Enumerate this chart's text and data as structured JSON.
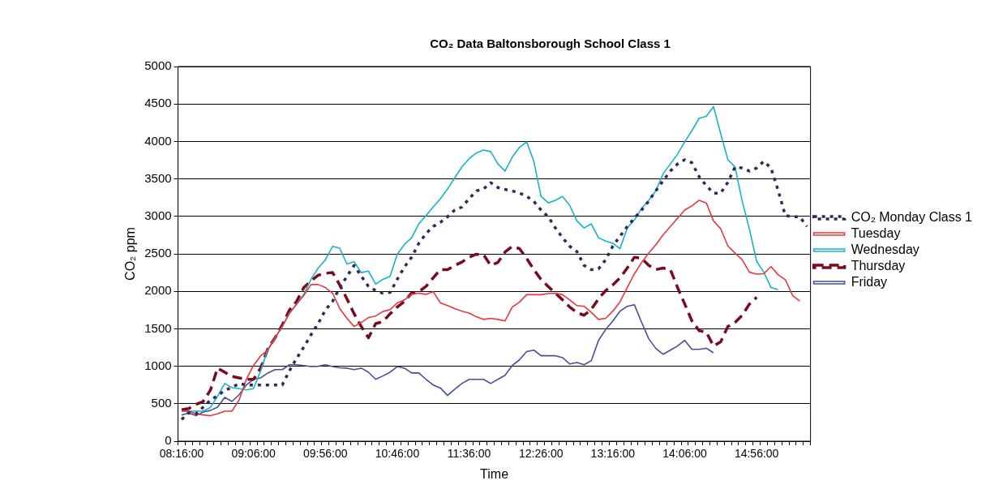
{
  "chart_data": {
    "type": "line",
    "title": "CO₂ Data Baltonsborough School Class 1",
    "xlabel": "Time",
    "ylabel": "CO₂ ppm",
    "categories": [
      "08:16:00",
      null,
      null,
      null,
      null,
      null,
      null,
      null,
      null,
      null,
      "09:06:00",
      null,
      null,
      null,
      null,
      null,
      null,
      null,
      null,
      null,
      "09:56:00",
      null,
      null,
      null,
      null,
      null,
      null,
      null,
      null,
      null,
      "10:46:00",
      null,
      null,
      null,
      null,
      null,
      null,
      null,
      null,
      null,
      "11:36:00",
      null,
      null,
      null,
      null,
      null,
      null,
      null,
      null,
      null,
      "12:26:00",
      null,
      null,
      null,
      null,
      null,
      null,
      null,
      null,
      null,
      "13:16:00",
      null,
      null,
      null,
      null,
      null,
      null,
      null,
      null,
      null,
      "14:06:00",
      null,
      null,
      null,
      null,
      null,
      null,
      null,
      null,
      null,
      "14:56:00",
      null,
      null,
      null,
      null,
      null,
      null,
      null
    ],
    "ylim": [
      0,
      5000
    ],
    "yticks": [
      0,
      500,
      1000,
      1500,
      2000,
      2500,
      3000,
      3500,
      4000,
      4500,
      5000
    ],
    "grid": "y",
    "legend": "right",
    "series": [
      {
        "name": "CO₂ Monday Class 1",
        "color": "#2e2a5e",
        "line_style": "dotted",
        "values": [
          290,
          380,
          365,
          455,
          550,
          605,
          680,
          715,
          770,
          750,
          750,
          750,
          750,
          750,
          750,
          940,
          1105,
          1255,
          1420,
          1570,
          1750,
          1865,
          2050,
          2200,
          2345,
          2200,
          2065,
          2010,
          1975,
          1985,
          2160,
          2325,
          2455,
          2640,
          2770,
          2865,
          2920,
          2995,
          3085,
          3125,
          3235,
          3340,
          3365,
          3450,
          3385,
          3360,
          3340,
          3310,
          3270,
          3200,
          3085,
          2995,
          2845,
          2715,
          2600,
          2530,
          2345,
          2290,
          2300,
          2420,
          2605,
          2735,
          2865,
          2975,
          3085,
          3205,
          3345,
          3475,
          3605,
          3700,
          3755,
          3715,
          3530,
          3410,
          3310,
          3310,
          3455,
          3660,
          3645,
          3605,
          3645,
          3735,
          3645,
          3345,
          3010,
          2995,
          2995,
          2865
        ]
      },
      {
        "name": "Tuesday",
        "color": "#e8383d",
        "values": [
          400,
          400,
          365,
          350,
          340,
          365,
          400,
          400,
          550,
          825,
          1010,
          1140,
          1215,
          1380,
          1530,
          1715,
          1830,
          1945,
          2090,
          2090,
          2050,
          1975,
          1770,
          1640,
          1530,
          1585,
          1650,
          1670,
          1730,
          1755,
          1845,
          1885,
          1960,
          1975,
          1960,
          1995,
          1845,
          1810,
          1770,
          1735,
          1710,
          1660,
          1625,
          1640,
          1625,
          1605,
          1790,
          1855,
          1955,
          1955,
          1955,
          1970,
          1975,
          1955,
          1885,
          1810,
          1800,
          1720,
          1625,
          1640,
          1735,
          1860,
          2050,
          2235,
          2385,
          2510,
          2625,
          2755,
          2865,
          2975,
          3085,
          3140,
          3215,
          3180,
          2940,
          2835,
          2605,
          2510,
          2420,
          2255,
          2230,
          2235,
          2330,
          2220,
          2155,
          1945,
          1870,
          null
        ]
      },
      {
        "name": "Wednesday",
        "color": "#16b4c8",
        "values": [
          400,
          400,
          400,
          400,
          450,
          600,
          770,
          715,
          700,
          685,
          700,
          940,
          1230,
          1380,
          1530,
          1700,
          1830,
          1960,
          2160,
          2310,
          2420,
          2600,
          2575,
          2365,
          2395,
          2250,
          2270,
          2095,
          2160,
          2200,
          2495,
          2625,
          2715,
          2900,
          3010,
          3125,
          3235,
          3365,
          3515,
          3660,
          3770,
          3845,
          3885,
          3865,
          3700,
          3605,
          3790,
          3920,
          3995,
          3735,
          3270,
          3180,
          3215,
          3265,
          3145,
          2940,
          2845,
          2900,
          2715,
          2670,
          2640,
          2570,
          2845,
          2955,
          3105,
          3215,
          3345,
          3570,
          3700,
          3830,
          3995,
          4145,
          4310,
          4335,
          4465,
          4105,
          3755,
          3660,
          3200,
          2830,
          2400,
          2255,
          2050,
          2020,
          null,
          null,
          null,
          null
        ]
      },
      {
        "name": "Thursday",
        "color": "#7a0a1e",
        "line_style": "dashed",
        "values": [
          420,
          435,
          490,
          530,
          680,
          975,
          920,
          865,
          845,
          825,
          825,
          975,
          1235,
          1380,
          1550,
          1750,
          1865,
          2050,
          2140,
          2215,
          2240,
          2250,
          2085,
          1900,
          1700,
          1530,
          1380,
          1570,
          1595,
          1700,
          1790,
          1865,
          1975,
          1995,
          2065,
          2180,
          2290,
          2290,
          2345,
          2390,
          2455,
          2495,
          2490,
          2345,
          2385,
          2525,
          2600,
          2570,
          2440,
          2290,
          2160,
          2065,
          1975,
          1885,
          1790,
          1715,
          1680,
          1760,
          1900,
          2010,
          2085,
          2180,
          2310,
          2455,
          2440,
          2345,
          2290,
          2310,
          2290,
          2050,
          1830,
          1605,
          1475,
          1455,
          1270,
          1325,
          1530,
          1585,
          1680,
          1830,
          1920,
          null,
          null,
          null,
          null,
          null,
          null,
          null
        ]
      },
      {
        "name": "Friday",
        "color": "#444f96",
        "values": [
          350,
          375,
          340,
          390,
          410,
          455,
          585,
          530,
          620,
          750,
          825,
          845,
          910,
          955,
          955,
          1020,
          1020,
          1010,
          995,
          1000,
          1020,
          995,
          980,
          975,
          955,
          975,
          920,
          825,
          870,
          920,
          995,
          975,
          910,
          910,
          825,
          750,
          710,
          610,
          695,
          770,
          825,
          825,
          825,
          770,
          825,
          880,
          1010,
          1085,
          1195,
          1215,
          1140,
          1140,
          1140,
          1115,
          1030,
          1050,
          1020,
          1075,
          1345,
          1490,
          1605,
          1735,
          1800,
          1820,
          1585,
          1365,
          1235,
          1160,
          1215,
          1270,
          1345,
          1225,
          1225,
          1240,
          1180,
          null,
          null,
          null,
          null,
          null,
          null,
          null,
          null,
          null,
          null,
          null,
          null,
          null
        ]
      }
    ]
  }
}
